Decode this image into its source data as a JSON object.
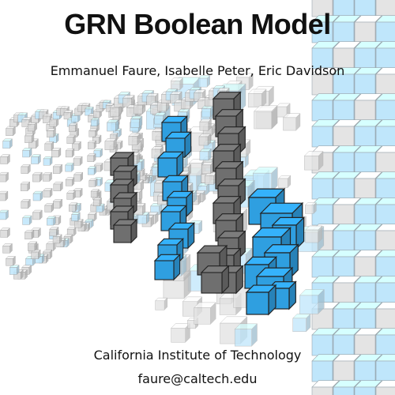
{
  "cover": {
    "title": "GRN Boolean Model",
    "authors": "Emmanuel Faure, Isabelle Peter, Eric Davidson",
    "institution": "California Institute of Technology",
    "email": "faure@caltech.edu"
  },
  "artwork": {
    "subject": "3D cube-based gene regulatory network visualization",
    "colors": {
      "active_blue": "#2f9fe0",
      "light_blue": "#bfe6fb",
      "gray": "#c8c8c8",
      "dark_gray": "#6f6f6f",
      "edge": "#222222"
    }
  }
}
